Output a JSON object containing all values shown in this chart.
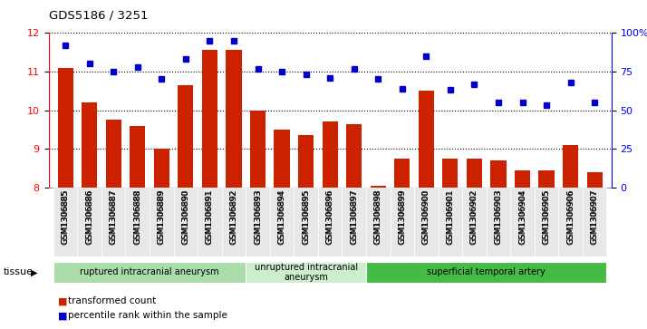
{
  "title": "GDS5186 / 3251",
  "samples": [
    "GSM1306885",
    "GSM1306886",
    "GSM1306887",
    "GSM1306888",
    "GSM1306889",
    "GSM1306890",
    "GSM1306891",
    "GSM1306892",
    "GSM1306893",
    "GSM1306894",
    "GSM1306895",
    "GSM1306896",
    "GSM1306897",
    "GSM1306898",
    "GSM1306899",
    "GSM1306900",
    "GSM1306901",
    "GSM1306902",
    "GSM1306903",
    "GSM1306904",
    "GSM1306905",
    "GSM1306906",
    "GSM1306907"
  ],
  "bar_values": [
    11.1,
    10.2,
    9.75,
    9.6,
    9.0,
    10.65,
    11.55,
    11.55,
    10.0,
    9.5,
    9.35,
    9.7,
    9.65,
    8.05,
    8.75,
    10.5,
    8.75,
    8.75,
    8.7,
    8.45,
    8.45,
    9.1,
    8.4
  ],
  "dot_values_pct": [
    92,
    80,
    75,
    78,
    70,
    83,
    95,
    95,
    77,
    75,
    73,
    71,
    77,
    70,
    64,
    85,
    63,
    67,
    55,
    55,
    53,
    68,
    55
  ],
  "ylim_left": [
    8,
    12
  ],
  "ylim_right": [
    0,
    100
  ],
  "yticks_left": [
    8,
    9,
    10,
    11,
    12
  ],
  "yticks_right": [
    0,
    25,
    50,
    75,
    100
  ],
  "ytick_labels_right": [
    "0",
    "25",
    "50",
    "75",
    "100%"
  ],
  "bar_color": "#cc2200",
  "dot_color": "#0000cc",
  "groups": [
    {
      "label": "ruptured intracranial aneurysm",
      "start": 0,
      "end": 8,
      "color": "#aaddaa"
    },
    {
      "label": "unruptured intracranial\naneurysm",
      "start": 8,
      "end": 13,
      "color": "#cceecc"
    },
    {
      "label": "superficial temporal artery",
      "start": 13,
      "end": 23,
      "color": "#44bb44"
    }
  ],
  "legend_bar_label": "transformed count",
  "legend_dot_label": "percentile rank within the sample",
  "tissue_label": "tissue"
}
